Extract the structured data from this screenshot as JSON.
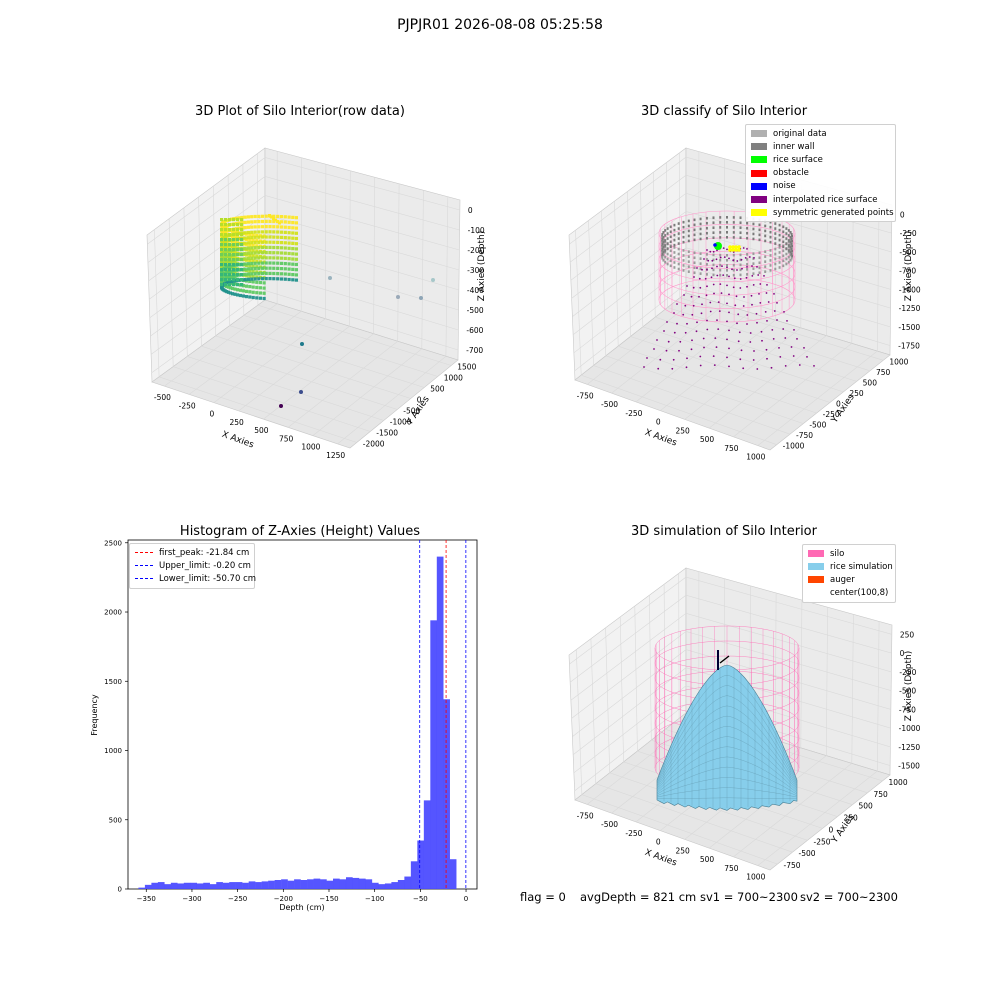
{
  "suptitle": "PJPJR01 2026-08-08 05:25:58",
  "colors": {
    "original_data": "#b0b0b0",
    "inner_wall": "#808080",
    "rice_surface": "#00ff00",
    "obstacle": "#ff0000",
    "noise": "#0000ff",
    "interpolated": "#800080",
    "symmetric": "#ffff00",
    "silo": "#ff69b4",
    "rice_sim": "#87ceeb",
    "auger": "#ff4500",
    "hist_bar": "#4c4cff"
  },
  "chart_data": [
    {
      "type": "scatter",
      "title": "3D Plot of Silo Interior(row data)",
      "xlabel": "X Axies",
      "ylabel": "Y Axies",
      "zlabel": "Z Axies (Depth)",
      "xticks": [
        "-500",
        "-250",
        "0",
        "250",
        "500",
        "750",
        "1000",
        "1250"
      ],
      "yticks": [
        "-2000",
        "-1500",
        "-1000",
        "-500",
        "0",
        "500",
        "1000",
        "1500"
      ],
      "zticks": [
        "0",
        "-100",
        "-200",
        "-300",
        "-400",
        "-500",
        "-600",
        "-700"
      ],
      "xlim": [
        -600,
        1400
      ],
      "ylim": [
        -2000,
        1800
      ],
      "zlim": [
        -800,
        50
      ],
      "colormap": "viridis",
      "outliers": [
        {
          "x": 1300,
          "y": 1200,
          "z": -520
        },
        {
          "x": 1100,
          "y": 900,
          "z": -600
        },
        {
          "x": 700,
          "y": 900,
          "z": -450
        },
        {
          "x": 500,
          "y": -200,
          "z": -650
        },
        {
          "x": 850,
          "y": -400,
          "z": -800
        },
        {
          "x": 700,
          "y": -1200,
          "z": -750
        }
      ]
    },
    {
      "type": "scatter",
      "title": "3D classify of Silo Interior",
      "xlabel": "X Axies",
      "ylabel": "Y Axies",
      "zlabel": "Z Axies (Depth)",
      "xticks": [
        "-750",
        "-500",
        "-250",
        "0",
        "250",
        "500",
        "750",
        "1000"
      ],
      "yticks": [
        "-1000",
        "-750",
        "-500",
        "-250",
        "0",
        "250",
        "500",
        "750",
        "1000"
      ],
      "zticks": [
        "0",
        "-250",
        "-500",
        "-750",
        "-1000",
        "-1250",
        "-1500",
        "-1750"
      ],
      "legend": [
        "original data",
        "inner wall",
        "rice surface",
        "obstacle",
        "noise",
        "interpolated rice surface",
        "symmetric generated points"
      ],
      "legend_loc": "upper right"
    },
    {
      "type": "bar",
      "title": "Histogram of Z-Axies (Height) Values",
      "xlabel": "Depth (cm)",
      "ylabel": "Frequency",
      "xlim": [
        -370,
        12
      ],
      "ylim": [
        0,
        2520
      ],
      "xticks": [
        -350,
        -300,
        -250,
        -200,
        -150,
        -100,
        -50,
        0
      ],
      "yticks": [
        0,
        500,
        1000,
        1500,
        2000,
        2500
      ],
      "bin_width": 7.1,
      "bin_start": -358.6,
      "values": [
        10,
        30,
        45,
        50,
        35,
        45,
        40,
        45,
        45,
        40,
        45,
        35,
        50,
        45,
        50,
        50,
        45,
        55,
        50,
        55,
        60,
        65,
        70,
        60,
        70,
        65,
        70,
        75,
        70,
        60,
        75,
        70,
        85,
        80,
        75,
        70,
        45,
        35,
        40,
        50,
        65,
        90,
        200,
        350,
        640,
        1940,
        2400,
        1370,
        215
      ],
      "vlines": [
        {
          "label": "first_peak: -21.84 cm",
          "x": -21.84,
          "color": "#ff0000"
        },
        {
          "label": "Upper_limit: -0.20 cm",
          "x": -0.2,
          "color": "#0000ff"
        },
        {
          "label": "Lower_limit: -50.70 cm",
          "x": -50.7,
          "color": "#0000ff"
        }
      ],
      "grid": false,
      "legend_loc": "upper left"
    },
    {
      "type": "surface",
      "title": "3D simulation of Silo Interior",
      "xlabel": "X Axies",
      "ylabel": "Y Axies",
      "zlabel": "Z Axies (Depth)",
      "xticks": [
        "-750",
        "-500",
        "-250",
        "0",
        "250",
        "500",
        "750",
        "1000"
      ],
      "yticks": [
        "-750",
        "-500",
        "-250",
        "0",
        "250",
        "500",
        "750",
        "1000"
      ],
      "zticks": [
        "250",
        "0",
        "-250",
        "-500",
        "-750",
        "-1000",
        "-1250",
        "-1500"
      ],
      "legend": [
        "silo",
        "rice simulation",
        "auger",
        "center(100,8)"
      ],
      "legend_loc": "upper right"
    }
  ],
  "status": {
    "flag": "flag = 0",
    "avg": "avgDepth = 821 cm",
    "sv1": "sv1 = 700~2300",
    "sv2": "sv2 = 700~2300"
  }
}
